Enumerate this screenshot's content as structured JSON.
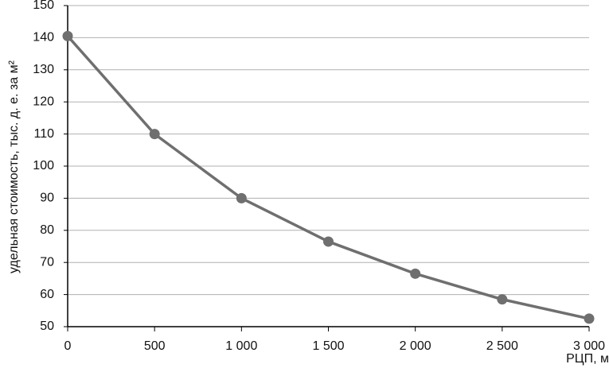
{
  "chart_data": {
    "type": "line",
    "x_label": "РЦП, м",
    "y_label": "удельная стоимость, тыс. д. е. за м²",
    "x": [
      0,
      500,
      1000,
      1500,
      2000,
      2500,
      3000
    ],
    "values": [
      140.5,
      110,
      90,
      76.5,
      66.5,
      58.5,
      52.5
    ],
    "color": "#6f6f6f",
    "xlim": [
      0,
      3000
    ],
    "xticks": [
      0,
      500,
      {
        "value": 1000,
        "label": "1 000"
      },
      {
        "value": 1500,
        "label": "1 500"
      },
      {
        "value": 2000,
        "label": "2 000"
      },
      {
        "value": 2500,
        "label": "2 500"
      },
      {
        "value": 3000,
        "label": "3 000"
      }
    ],
    "ylim": [
      50,
      150
    ],
    "yticks": [
      50,
      60,
      70,
      80,
      90,
      100,
      110,
      120,
      130,
      140,
      150
    ],
    "grid": true
  }
}
